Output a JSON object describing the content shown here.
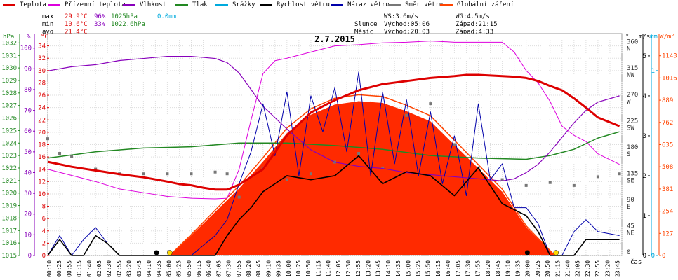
{
  "legend": [
    {
      "label": "Teplota",
      "color": "#dd0000"
    },
    {
      "label": "Přízemní teplota",
      "color": "#dd00dd"
    },
    {
      "label": "Vlhkost",
      "color": "#8800bb"
    },
    {
      "label": "Tlak",
      "color": "#228822"
    },
    {
      "label": "Srážky",
      "color": "#00aadd"
    },
    {
      "label": "Rychlost větru",
      "color": "#000000"
    },
    {
      "label": "Náraz větru",
      "color": "#0000aa"
    },
    {
      "label": "Směr větru",
      "color": "#777777"
    },
    {
      "label": "Globální záření",
      "color": "#ff4400"
    }
  ],
  "stats": {
    "max": {
      "label": "max",
      "temp": "29.9°C",
      "hum": "96%",
      "press": "1025hPa",
      "rain": "0.0mm"
    },
    "min": {
      "label": "min",
      "temp": "10.6°C",
      "hum": "33%",
      "press": "1022.6hPa"
    },
    "avg": {
      "label": "avg",
      "temp": "21.4°C"
    }
  },
  "astro": {
    "ws": "WS:3.6m/s",
    "wg": "WG:4.5m/s",
    "sun_label": "Slunce",
    "sun_rise": "Východ:05:06",
    "sun_set": "Západ:21:15",
    "moon_label": "Měsíc",
    "moon_rise": "Východ:20:03",
    "moon_set": "Západ:4:33"
  },
  "chart_data": {
    "type": "line",
    "title": "2.7.2015",
    "xlabel": "čas",
    "x_ticks": [
      "00:10",
      "00:25",
      "00:55",
      "01:15",
      "01:40",
      "02:05",
      "02:30",
      "02:55",
      "03:20",
      "03:45",
      "04:10",
      "04:35",
      "05:00",
      "05:25",
      "05:50",
      "06:15",
      "06:40",
      "07:05",
      "07:30",
      "07:55",
      "08:20",
      "08:45",
      "09:10",
      "09:35",
      "10:00",
      "10:25",
      "10:50",
      "11:15",
      "11:40",
      "12:05",
      "12:30",
      "12:55",
      "13:20",
      "13:45",
      "14:10",
      "14:35",
      "15:00",
      "15:25",
      "15:50",
      "16:15",
      "16:40",
      "17:05",
      "17:30",
      "17:55",
      "18:20",
      "18:45",
      "19:10",
      "19:35",
      "20:00",
      "20:25",
      "20:50",
      "21:15",
      "21:40",
      "22:05",
      "22:30",
      "22:55",
      "23:20",
      "23:45"
    ],
    "axes": {
      "hpa": {
        "label": "hPa",
        "color": "#228822",
        "ticks": [
          1015,
          1016,
          1017,
          1018,
          1019,
          1020,
          1021,
          1022,
          1023,
          1024,
          1025,
          1026,
          1027,
          1028,
          1029,
          1030,
          1031,
          1032
        ]
      },
      "pct": {
        "label": "%",
        "color": "#8800bb",
        "ticks": [
          0,
          10,
          20,
          30,
          40,
          50,
          60,
          70,
          80,
          90,
          100
        ]
      },
      "degc": {
        "label": "°C",
        "color": "#dd0000",
        "ticks": [
          0,
          2,
          4,
          6,
          8,
          10,
          12,
          14,
          16,
          18,
          20,
          22,
          24,
          26,
          28,
          30,
          32,
          34
        ]
      },
      "dir": {
        "label": "°",
        "ticks": [
          {
            "v": "360",
            "d": "N"
          },
          {
            "v": "315",
            "d": "NW"
          },
          {
            "v": "270",
            "d": "W"
          },
          {
            "v": "225",
            "d": "SW"
          },
          {
            "v": "180",
            "d": "S"
          },
          {
            "v": "135",
            "d": "SE"
          },
          {
            "v": "90",
            "d": "E"
          },
          {
            "v": "45",
            "d": "NE"
          },
          {
            "v": "0",
            "d": ""
          }
        ]
      },
      "ms": {
        "label": "m/s",
        "color": "#000000",
        "ticks": [
          0,
          1,
          2,
          3,
          4,
          5
        ]
      },
      "mm": {
        "label": "mm",
        "color": "#00aadd",
        "ticks": [
          0,
          1
        ]
      },
      "wm2": {
        "label": "W/m²",
        "color": "#ff4400",
        "ticks": [
          0,
          127,
          254,
          381,
          508,
          635,
          762,
          889,
          1016,
          1143
        ]
      }
    },
    "series": [
      {
        "name": "Teplota",
        "unit": "°C",
        "color": "#dd0000",
        "x": [
          0,
          1,
          2,
          3,
          4,
          5,
          5.5,
          6,
          6.5,
          7,
          7.5,
          8,
          9,
          10,
          11,
          12,
          13,
          14,
          15,
          16,
          17,
          17.5,
          18,
          18.5,
          19,
          19.5,
          20,
          20.5,
          21,
          21.5,
          22,
          22.5,
          23,
          23.9
        ],
        "y": [
          15.2,
          14.4,
          13.8,
          13.2,
          12.7,
          12.0,
          11.6,
          11.4,
          11.0,
          10.7,
          10.7,
          11.5,
          14.0,
          19.5,
          23.2,
          25.2,
          26.8,
          27.8,
          28.3,
          28.8,
          29.1,
          29.3,
          29.3,
          29.2,
          29.1,
          29.0,
          28.8,
          28.3,
          27.5,
          26.8,
          25.5,
          24.0,
          22.4,
          21.0
        ]
      },
      {
        "name": "Přízemní teplota",
        "unit": "°C",
        "color": "#dd00dd",
        "x": [
          0,
          1,
          2,
          3,
          4,
          5,
          6,
          7,
          7.5,
          8,
          8.5,
          9,
          9.5,
          10,
          11,
          12,
          13,
          14,
          15,
          16,
          17,
          18,
          19,
          19.5,
          20,
          20.5,
          21,
          21.5,
          22,
          22.5,
          23,
          23.9
        ],
        "y": [
          14.0,
          13.0,
          12.0,
          10.8,
          10.2,
          9.6,
          9.3,
          9.2,
          9.3,
          14.0,
          22.0,
          29.5,
          31.6,
          32.0,
          33.0,
          34.0,
          34.2,
          34.5,
          34.6,
          34.8,
          34.6,
          34.6,
          34.6,
          33.0,
          30.0,
          28.0,
          25.0,
          21.0,
          19.5,
          18.5,
          16.5,
          14.8
        ]
      },
      {
        "name": "Vlhkost",
        "unit": "%",
        "color": "#8800bb",
        "x": [
          0,
          1,
          2,
          3,
          4,
          5,
          6,
          7,
          7.5,
          8,
          8.5,
          9,
          10,
          11,
          12,
          13,
          14,
          15,
          16,
          17,
          18,
          19,
          19.5,
          20,
          20.5,
          21,
          21.5,
          22,
          22.5,
          23,
          23.9
        ],
        "y": [
          89,
          91,
          92,
          94,
          95,
          96,
          96,
          95,
          93,
          88,
          80,
          72,
          61,
          51,
          45,
          43,
          42,
          40,
          39,
          38,
          37,
          36,
          37,
          40,
          44,
          50,
          57,
          64,
          70,
          74,
          77
        ]
      },
      {
        "name": "Tlak",
        "unit": "hPa",
        "color": "#228822",
        "x": [
          0,
          2,
          4,
          6,
          8,
          10,
          12,
          14,
          16,
          18,
          20,
          21,
          22,
          23,
          23.9
        ],
        "y": [
          1022.8,
          1023.3,
          1023.6,
          1023.7,
          1024.0,
          1024.0,
          1023.8,
          1023.5,
          1023.0,
          1022.8,
          1022.7,
          1023.0,
          1023.5,
          1024.4,
          1024.9
        ]
      },
      {
        "name": "Globální záření",
        "unit": "W/m²",
        "color": "#ff4400",
        "x": [
          5.1,
          6,
          7,
          8,
          9,
          10,
          11,
          12,
          13,
          14,
          15,
          16,
          17,
          18,
          19,
          20,
          21.2
        ],
        "y": [
          0,
          120,
          260,
          400,
          560,
          730,
          840,
          900,
          920,
          910,
          860,
          800,
          660,
          520,
          380,
          170,
          0
        ]
      },
      {
        "name": "Rychlost větru",
        "unit": "m/s",
        "color": "#000000",
        "x": [
          0,
          0.5,
          1,
          1.5,
          2,
          2.5,
          3,
          4,
          5,
          6,
          7,
          7.5,
          8,
          8.5,
          9,
          10,
          11,
          12,
          13,
          14,
          15,
          16,
          17,
          18,
          19,
          20,
          20.5,
          21,
          21.5,
          22,
          22.5,
          23,
          23.9
        ],
        "y": [
          0,
          0.4,
          0,
          0,
          0.5,
          0.3,
          0,
          0,
          0,
          0,
          0,
          0.5,
          0.9,
          1.2,
          1.6,
          2.0,
          1.9,
          2.0,
          2.5,
          1.8,
          2.1,
          2.0,
          1.5,
          2.2,
          1.3,
          1.0,
          0.6,
          0,
          0,
          0,
          0.4,
          0.4,
          0.4
        ]
      },
      {
        "name": "Náraz větru",
        "unit": "m/s",
        "color": "#0000aa",
        "x": [
          0,
          0.5,
          1,
          1.5,
          2,
          2.5,
          3,
          4,
          5,
          6,
          7,
          7.5,
          8,
          8.5,
          9,
          9.5,
          10,
          10.5,
          11,
          11.5,
          12,
          12.5,
          13,
          13.5,
          14,
          14.5,
          15,
          15.5,
          16,
          16.5,
          17,
          17.5,
          18,
          18.5,
          19,
          19.5,
          20,
          20.5,
          21,
          21.5,
          22,
          22.5,
          23,
          23.9
        ],
        "y": [
          0,
          0.5,
          0,
          0.4,
          0.7,
          0.3,
          0,
          0,
          0,
          0,
          0.5,
          0.9,
          1.8,
          2.6,
          3.8,
          2.5,
          4.1,
          2.0,
          4.0,
          3.1,
          4.2,
          2.6,
          4.6,
          2.0,
          4.1,
          2.3,
          3.9,
          2.0,
          3.6,
          1.8,
          3.0,
          1.5,
          3.8,
          1.9,
          2.3,
          1.2,
          1.2,
          0.8,
          0,
          0,
          0.6,
          0.9,
          0.6,
          0.5
        ]
      },
      {
        "name": "Směr větru",
        "unit": "°",
        "color": "#777777",
        "x": [
          0,
          0.5,
          1,
          2,
          3,
          4,
          5,
          6,
          7,
          7.5,
          8,
          9,
          10,
          11,
          12,
          13,
          14,
          15,
          16,
          17,
          18,
          19,
          20,
          21,
          22,
          23,
          23.9
        ],
        "y": [
          200,
          175,
          170,
          148,
          140,
          140,
          140,
          140,
          143,
          140,
          100,
          150,
          130,
          140,
          160,
          175,
          150,
          240,
          260,
          190,
          150,
          130,
          120,
          125,
          120,
          135,
          140
        ]
      }
    ]
  }
}
